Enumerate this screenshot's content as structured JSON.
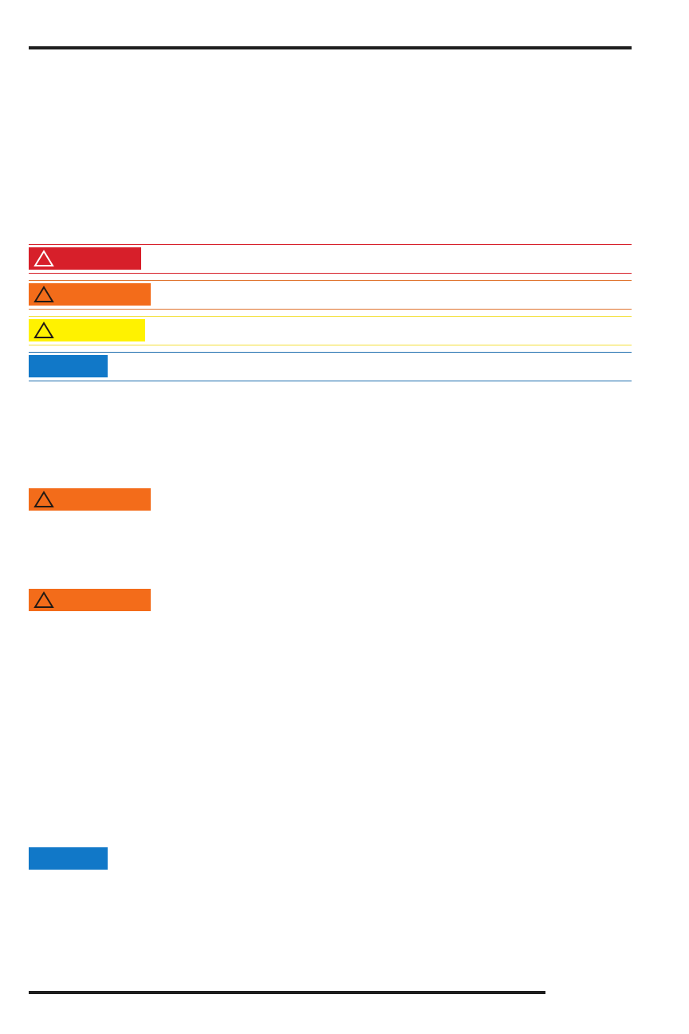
{
  "colors": {
    "danger": "#d71f2a",
    "warning": "#f36c1a",
    "caution": "#fff200",
    "notice": "#1178c8",
    "rule": "#1e1e1e"
  },
  "labels": [
    {
      "level": "danger",
      "icon": "warning-triangle-icon"
    },
    {
      "level": "warning",
      "icon": "warning-triangle-icon"
    },
    {
      "level": "caution",
      "icon": "warning-triangle-icon"
    },
    {
      "level": "notice",
      "icon": null
    },
    {
      "level": "warning",
      "icon": "warning-triangle-icon"
    },
    {
      "level": "warning",
      "icon": "warning-triangle-icon"
    },
    {
      "level": "notice",
      "icon": null
    }
  ]
}
